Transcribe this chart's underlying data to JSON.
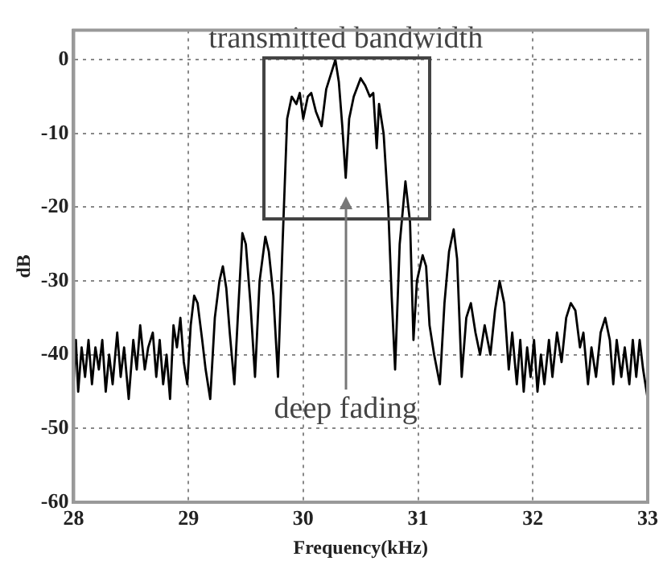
{
  "chart_data": {
    "type": "line",
    "xlabel": "Frequency(kHz)",
    "ylabel": "dB",
    "xlim": [
      28,
      33
    ],
    "xticks": [
      28,
      29,
      30,
      31,
      32,
      33
    ],
    "ylim": [
      -60,
      4
    ],
    "yticks": [
      -60,
      -50,
      -40,
      -30,
      -20,
      -10,
      0
    ],
    "grid": true,
    "annotations": [
      "transmitted bandwidth",
      "deep fading"
    ],
    "series": [
      {
        "color": "#000000",
        "x": [
          28.0,
          28.02,
          28.04,
          28.07,
          28.1,
          28.13,
          28.16,
          28.19,
          28.22,
          28.25,
          28.28,
          28.31,
          28.34,
          28.38,
          28.41,
          28.44,
          28.48,
          28.52,
          28.55,
          28.58,
          28.62,
          28.65,
          28.69,
          28.72,
          28.75,
          28.78,
          28.81,
          28.84,
          28.87,
          28.9,
          28.93,
          28.96,
          28.99,
          29.02,
          29.05,
          29.08,
          29.12,
          29.15,
          29.19,
          29.23,
          29.27,
          29.3,
          29.33,
          29.36,
          29.4,
          29.43,
          29.47,
          29.5,
          29.54,
          29.58,
          29.62,
          29.67,
          29.7,
          29.74,
          29.78,
          29.82,
          29.86,
          29.9,
          29.94,
          29.97,
          30.0,
          30.04,
          30.07,
          30.11,
          30.16,
          30.2,
          30.24,
          30.28,
          30.31,
          30.34,
          30.37,
          30.4,
          30.44,
          30.5,
          30.54,
          30.58,
          30.61,
          30.64,
          30.66,
          30.7,
          30.74,
          30.77,
          30.8,
          30.84,
          30.89,
          30.93,
          30.96,
          30.99,
          31.04,
          31.07,
          31.1,
          31.14,
          31.19,
          31.23,
          31.27,
          31.31,
          31.34,
          31.38,
          31.42,
          31.46,
          31.5,
          31.54,
          31.58,
          31.63,
          31.67,
          31.71,
          31.75,
          31.79,
          31.82,
          31.86,
          31.89,
          31.92,
          31.95,
          31.98,
          32.01,
          32.04,
          32.07,
          32.1,
          32.14,
          32.17,
          32.21,
          32.25,
          32.29,
          32.33,
          32.37,
          32.41,
          32.44,
          32.48,
          32.51,
          32.55,
          32.59,
          32.63,
          32.67,
          32.7,
          32.73,
          32.77,
          32.8,
          32.84,
          32.87,
          32.9,
          32.93,
          32.96,
          33.0
        ],
        "values": [
          -44,
          -38,
          -45,
          -39,
          -43,
          -38,
          -44,
          -39,
          -42,
          -38,
          -45,
          -40,
          -44,
          -37,
          -43,
          -39,
          -46,
          -38,
          -42,
          -36,
          -42,
          -39,
          -37,
          -43,
          -38,
          -44,
          -40,
          -46,
          -36,
          -39,
          -35,
          -41,
          -44,
          -36,
          -32,
          -33,
          -38,
          -42,
          -46,
          -35,
          -30,
          -28,
          -31,
          -37,
          -44,
          -35,
          -23.5,
          -25,
          -33,
          -43,
          -30,
          -24,
          -26,
          -32,
          -43,
          -25,
          -8,
          -5,
          -6,
          -4.5,
          -8,
          -5,
          -4.5,
          -7,
          -9,
          -4,
          -2,
          0,
          -3,
          -9,
          -16,
          -8,
          -5,
          -2.5,
          -3.5,
          -5,
          -4.5,
          -12,
          -6,
          -10,
          -20,
          -32,
          -42,
          -25,
          -16.5,
          -22,
          -38,
          -30,
          -26.5,
          -28,
          -36,
          -40,
          -44,
          -33,
          -26,
          -23,
          -27,
          -43,
          -35,
          -33,
          -37,
          -40,
          -36,
          -40,
          -34,
          -30,
          -33,
          -42,
          -37,
          -44,
          -38,
          -45,
          -39,
          -43,
          -38,
          -45,
          -40,
          -44,
          -38,
          -43,
          -37,
          -41,
          -35,
          -33,
          -34,
          -39,
          -37,
          -44,
          -39,
          -43,
          -37,
          -35,
          -38,
          -44,
          -38,
          -43,
          -39,
          -44,
          -38,
          -43,
          -38,
          -42,
          -46
        ]
      }
    ]
  }
}
